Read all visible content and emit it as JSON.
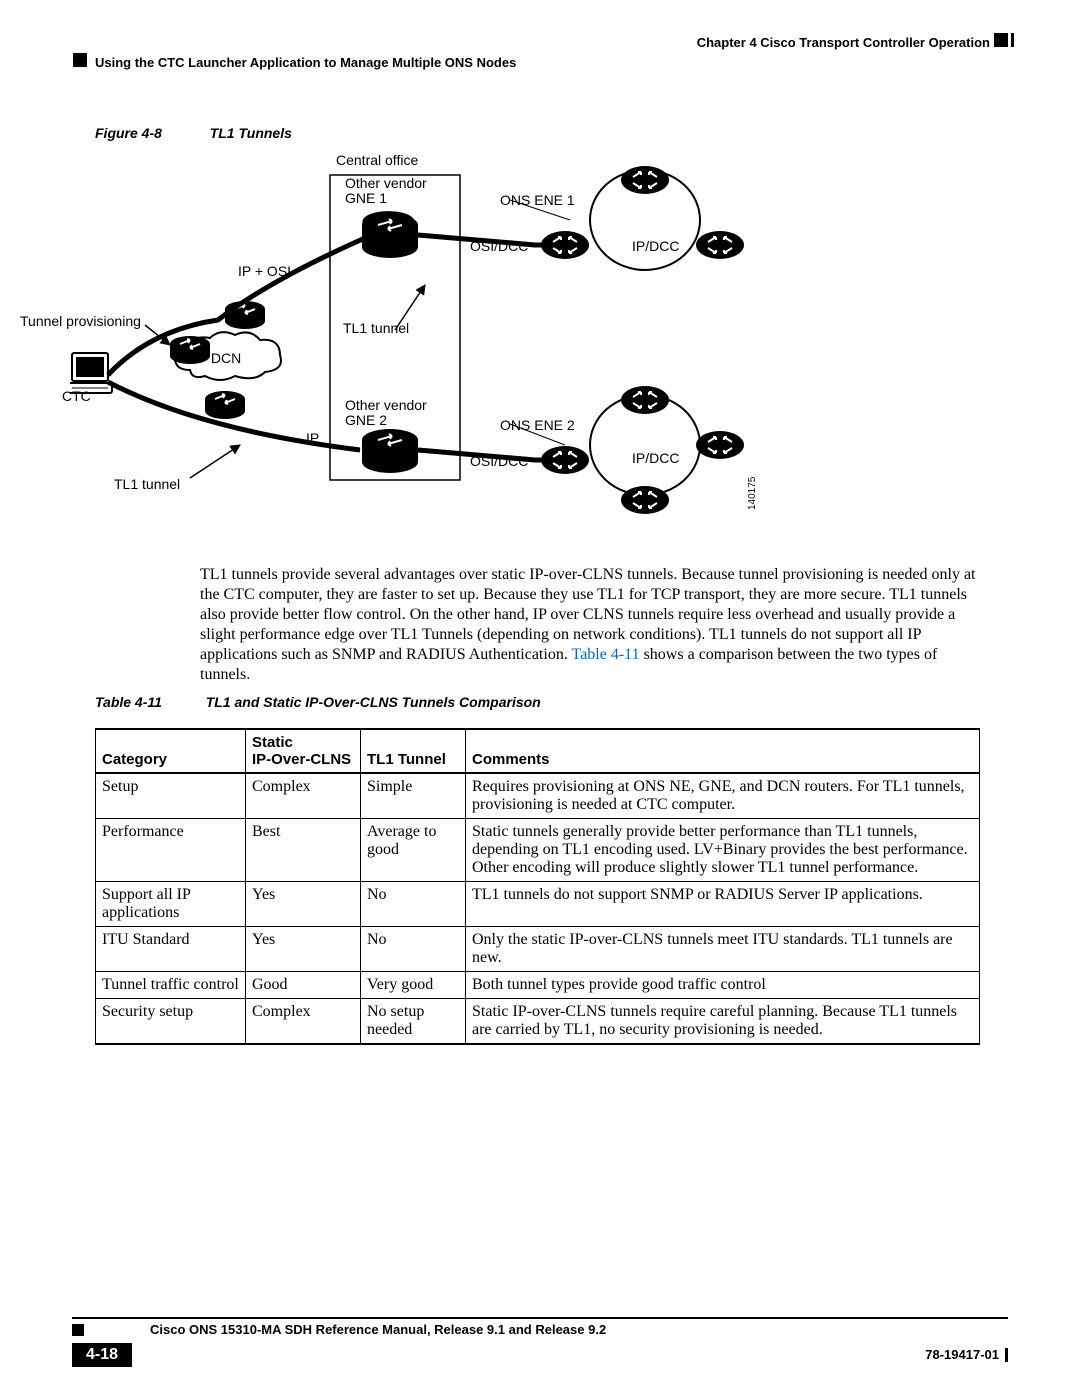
{
  "header": {
    "chapter": "Chapter 4    Cisco Transport Controller Operation",
    "section": "Using the CTC Launcher Application to Manage Multiple ONS Nodes"
  },
  "figure": {
    "label": "Figure 4-8",
    "title": "TL1 Tunnels",
    "labels": {
      "central_office": "Central office",
      "gne1": "Other vendor\nGNE 1",
      "gne2": "Other vendor\nGNE 2",
      "ons_ene1": "ONS ENE 1",
      "ons_ene2": "ONS ENE 2",
      "osidcc": "OSI/DCC",
      "ipdcc": "IP/DCC",
      "ip_osi": "IP + OSI",
      "ip": "IP",
      "ip_dcn": "IP DCN",
      "tunnel_prov": "Tunnel provisioning",
      "tl1_tunnel": "TL1 tunnel",
      "ctc": "CTC",
      "ref": "140175"
    }
  },
  "paragraph": {
    "text": "TL1 tunnels provide several advantages over static IP-over-CLNS tunnels. Because tunnel provisioning is needed only at the CTC computer, they are faster to set up. Because they use TL1 for TCP transport, they are more secure. TL1 tunnels also provide better flow control. On the other hand, IP over CLNS tunnels require less overhead and usually provide a slight performance edge over TL1 Tunnels (depending on network conditions). TL1 tunnels do not support all IP applications such as SNMP and RADIUS Authentication. ",
    "link": "Table 4-11",
    "after": " shows a comparison between the two types of tunnels."
  },
  "table": {
    "label": "Table 4-11",
    "title": "TL1 and Static IP-Over-CLNS Tunnels Comparison",
    "columns": [
      "Category",
      "Static IP-Over-CLNS",
      "TL1 Tunnel",
      "Comments"
    ],
    "col_widths": [
      "150px",
      "115px",
      "105px",
      "auto"
    ],
    "rows": [
      [
        "Setup",
        "Complex",
        "Simple",
        "Requires provisioning at ONS NE, GNE, and DCN routers. For TL1 tunnels, provisioning is needed at CTC computer."
      ],
      [
        "Performance",
        "Best",
        "Average to good",
        "Static tunnels generally provide better performance than TL1 tunnels, depending on TL1 encoding used. LV+Binary provides the best performance. Other encoding will produce slightly slower TL1 tunnel performance."
      ],
      [
        "Support all IP applications",
        "Yes",
        "No",
        "TL1 tunnels do not support SNMP or RADIUS Server IP applications."
      ],
      [
        "ITU Standard",
        "Yes",
        "No",
        "Only the static IP-over-CLNS tunnels meet ITU standards. TL1 tunnels are new."
      ],
      [
        "Tunnel traffic control",
        "Good",
        "Very good",
        "Both tunnel types provide good traffic control"
      ],
      [
        "Security setup",
        "Complex",
        "No setup needed",
        "Static IP-over-CLNS tunnels require careful planning. Because TL1 tunnels are carried by TL1, no security provisioning is needed."
      ]
    ]
  },
  "footer": {
    "manual": "Cisco ONS 15310-MA SDH Reference Manual, Release 9.1 and Release 9.2",
    "page": "4-18",
    "pn": "78-19417-01"
  },
  "colors": {
    "link": "#0066cc"
  }
}
